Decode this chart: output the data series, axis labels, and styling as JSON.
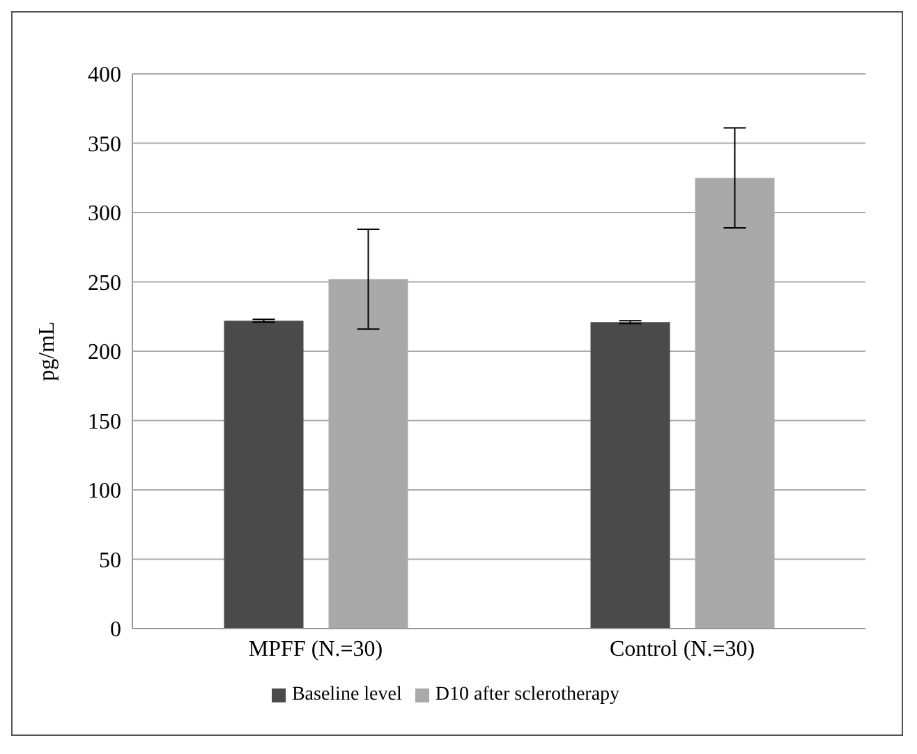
{
  "chart_data": {
    "type": "bar",
    "ylabel": "pg/mL",
    "categories": [
      "MPFF (N.=30)",
      "Control (N.=30)"
    ],
    "series": [
      {
        "name": "Baseline level",
        "color": "#4a4a4a",
        "values": [
          222,
          221
        ],
        "errors": [
          1,
          1
        ]
      },
      {
        "name": "D10 after sclerotherapy",
        "color": "#a9a9a9",
        "values": [
          252,
          325
        ],
        "errors": [
          36,
          36
        ]
      }
    ],
    "ylim": [
      0,
      400
    ],
    "yticks": [
      0,
      50,
      100,
      150,
      200,
      250,
      300,
      350,
      400
    ],
    "grid": "y",
    "legend": "bottom"
  }
}
